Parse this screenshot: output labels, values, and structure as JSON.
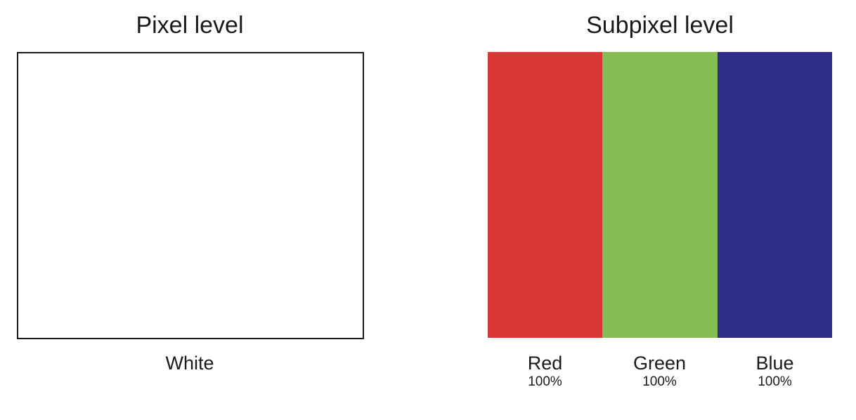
{
  "pixel_panel": {
    "title": "Pixel level",
    "caption": "White",
    "fill_color": "#ffffff",
    "border_color": "#1a1a1a"
  },
  "subpixel_panel": {
    "title": "Subpixel level",
    "subpixels": [
      {
        "name": "Red",
        "level": "100%",
        "color": "#d93733"
      },
      {
        "name": "Green",
        "level": "100%",
        "color": "#85bd55"
      },
      {
        "name": "Blue",
        "level": "100%",
        "color": "#2e2e8a"
      }
    ]
  }
}
